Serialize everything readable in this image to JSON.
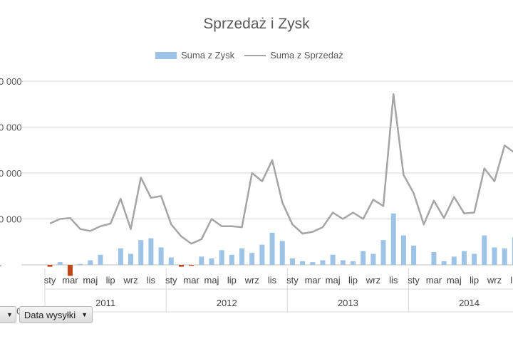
{
  "title": "Sprzedaż i Zysk",
  "legend": {
    "bar_label": "Suma z Zysk",
    "line_label": "Suma z Sprzedaż"
  },
  "pivot": {
    "field_button": "Data wysyłki"
  },
  "colors": {
    "bar": "#9dc3e6",
    "bar_negative": "#c0461a",
    "line": "#a5a5a5",
    "grid": "#d9d9d9"
  },
  "chart_data": {
    "type": "bar",
    "combo": "bar+line",
    "title": "Sprzedaż i Zysk",
    "ytick_labels": [
      "0 000",
      "0 000",
      "0 000",
      "0 000",
      "-",
      "0 000"
    ],
    "month_labels": [
      "sty",
      "mar",
      "maj",
      "lip",
      "wrz",
      "lis"
    ],
    "years": [
      "2011",
      "2012",
      "2013",
      "2014"
    ],
    "series": [
      {
        "name": "Suma z Zysk",
        "type": "bar",
        "values": [
          -0.2,
          0.3,
          -1.2,
          0.1,
          0.5,
          1.1,
          0,
          1.8,
          1.2,
          2.7,
          2.9,
          1.9,
          0.8,
          -0.2,
          -0.1,
          0.9,
          0.7,
          1.6,
          1.1,
          1.8,
          1.3,
          2.2,
          3.5,
          2.6,
          0.7,
          0.4,
          0.3,
          0.5,
          1.1,
          0.5,
          0.4,
          1.5,
          1.2,
          2.7,
          5.6,
          3.2,
          2.1,
          0,
          1.4,
          0.4,
          0.9,
          1.5,
          1.2,
          3.2,
          1.9,
          1.8,
          3.0
        ]
      },
      {
        "name": "Suma z Sprzedaż",
        "type": "line",
        "values": [
          4.5,
          5.0,
          5.1,
          3.9,
          3.7,
          4.2,
          4.5,
          7.2,
          3.9,
          9.5,
          7.3,
          7.5,
          4.4,
          3.1,
          2.3,
          2.8,
          5.0,
          4.2,
          4.2,
          4.1,
          10.0,
          9.1,
          11.4,
          6.8,
          4.4,
          3.4,
          3.6,
          4.1,
          5.7,
          5.0,
          5.7,
          5.0,
          7.1,
          6.4,
          18.6,
          9.8,
          7.8,
          4.4,
          7.0,
          5.1,
          7.4,
          5.6,
          5.7,
          10.5,
          9.1,
          13.0,
          12.2
        ]
      }
    ],
    "ylim": [
      -5,
      20
    ]
  }
}
